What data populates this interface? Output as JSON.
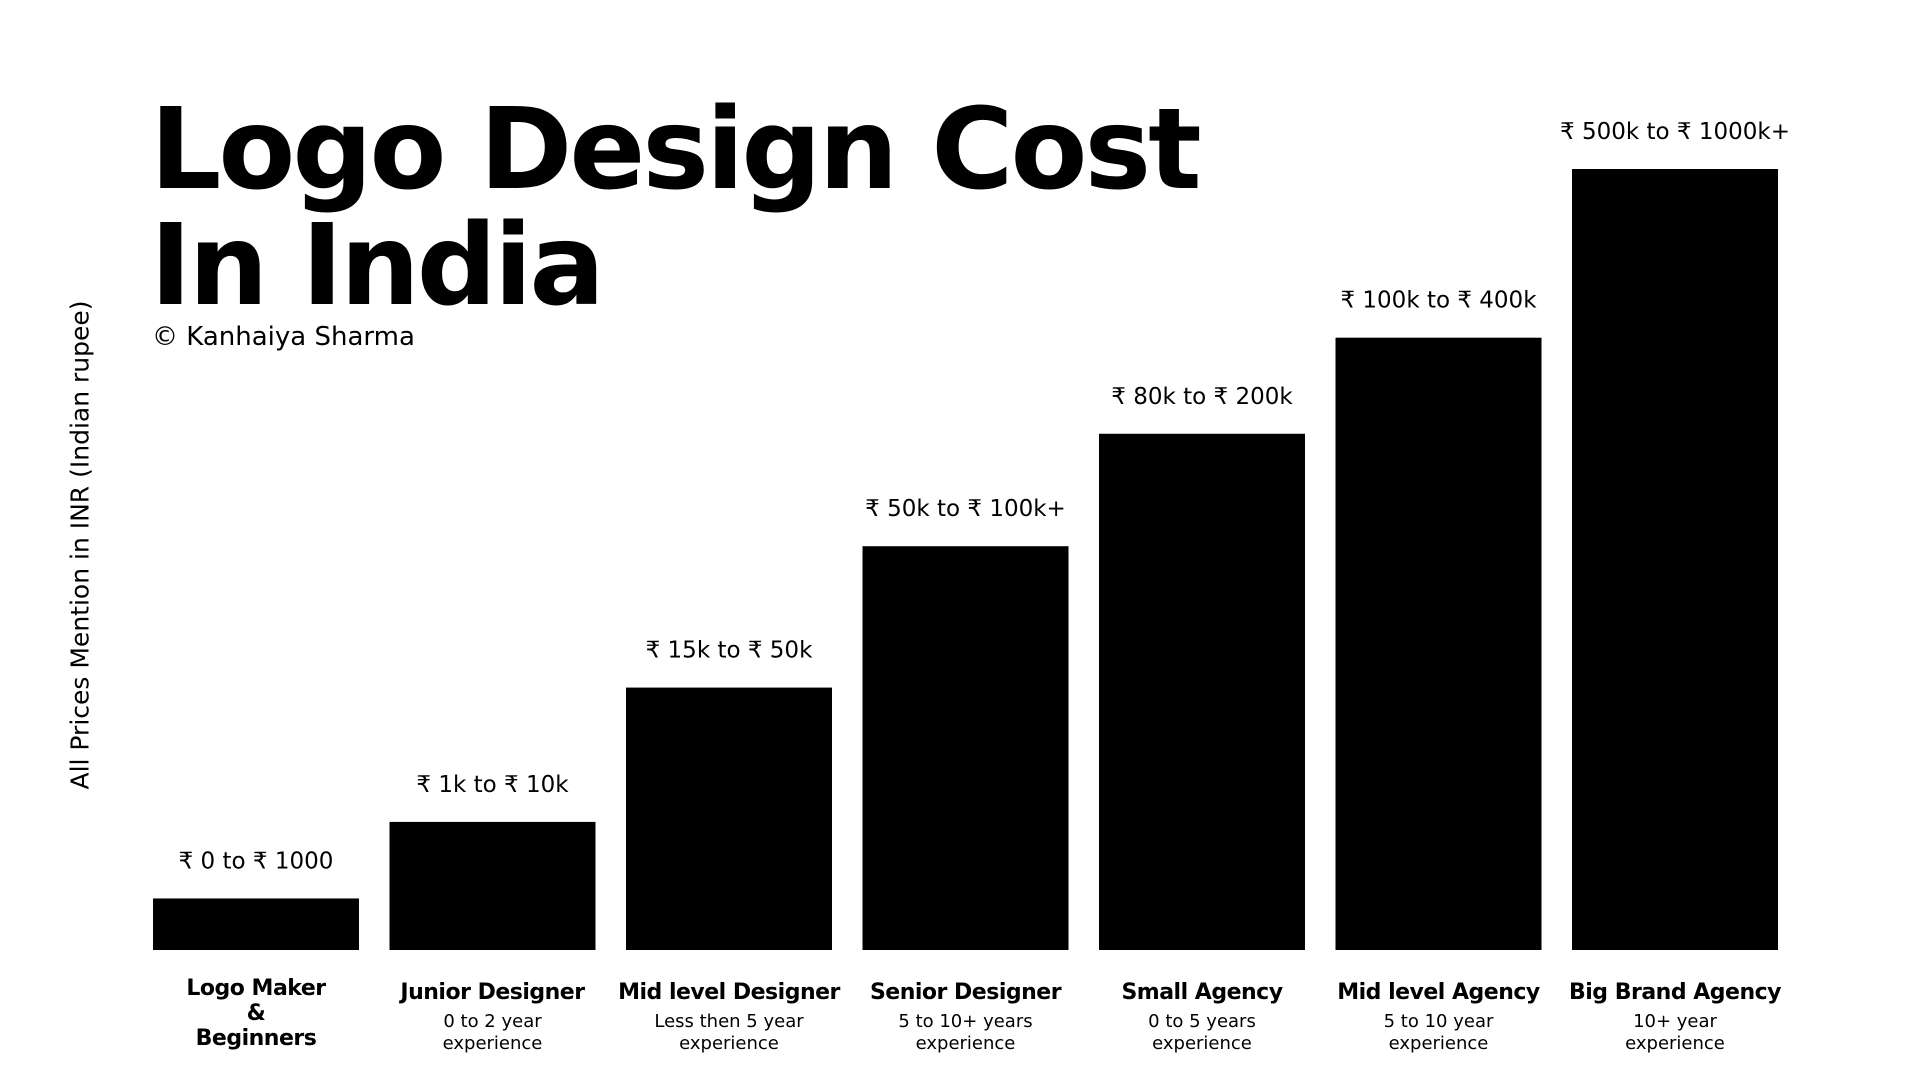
{
  "title_lines": [
    "Logo Design Cost",
    "In India"
  ],
  "credit": "© Kanhaiya Sharma",
  "colors": {
    "background": "#ffffff",
    "bar": "#000000",
    "text": "#000000"
  },
  "chart_data": {
    "type": "bar",
    "title": "Logo Design Cost In India",
    "ylabel": "All Prices Mention in INR (Indian rupee)",
    "xlabel": "",
    "ylim": [
      0,
      1000
    ],
    "grid": false,
    "legend": "none",
    "categories": [
      "Logo Maker\n&\nBeginners",
      "Junior Designer",
      "Mid level Designer",
      "Senior Designer",
      "Small Agency",
      "Mid level Agency",
      "Big Brand Agency"
    ],
    "subtitles": [
      "",
      "0 to 2 year\nexperience",
      "Less then 5 year\nexperience",
      "5 to 10+ years\nexperience",
      "0 to 5 years\nexperience",
      "5 to 10 year\nexperience",
      "10+ year\nexperience"
    ],
    "data_labels": [
      "₹ 0 to ₹ 1000",
      "₹ 1k to ₹ 10k",
      "₹ 15k to ₹ 50k",
      "₹ 50k to ₹ 100k+",
      "₹ 80k to ₹ 200k",
      "₹ 100k to ₹ 400k",
      "₹ 500k to ₹ 1000k+"
    ],
    "values": [
      66,
      164,
      336,
      517,
      661,
      784,
      1000
    ]
  }
}
